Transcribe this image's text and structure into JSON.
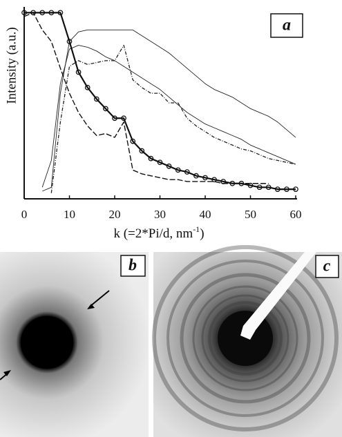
{
  "chart_data": {
    "type": "line",
    "xlabel": {
      "text": "k (=2*Pi/d, nm",
      "sup": "-1",
      "end": ")"
    },
    "ylabel": "Intensity (a.u.)",
    "annotations": [
      "a"
    ],
    "x": [
      0,
      2,
      4,
      6,
      8,
      10,
      12,
      14,
      16,
      18,
      20,
      22,
      24,
      26,
      28,
      30,
      32,
      34,
      36,
      38,
      40,
      42,
      44,
      46,
      48,
      50,
      52,
      54,
      56,
      58,
      60
    ],
    "xlim": [
      0,
      60
    ],
    "xticks": [
      0,
      10,
      20,
      30,
      40,
      50,
      60
    ],
    "ylim": [
      0,
      1
    ],
    "series": [
      {
        "color": "#222222",
        "width": 0.9,
        "values": [
          null,
          null,
          0.04,
          0.06,
          0.55,
          0.82,
          0.87,
          0.88,
          0.88,
          0.88,
          0.88,
          0.88,
          0.88,
          0.85,
          0.82,
          0.79,
          0.76,
          0.72,
          0.68,
          0.64,
          0.6,
          0.57,
          0.55,
          0.53,
          0.5,
          0.47,
          0.45,
          0.43,
          0.4,
          0.36,
          0.32
        ]
      },
      {
        "color": "#222222",
        "width": 0.9,
        "values": [
          null,
          null,
          0.06,
          0.2,
          0.6,
          0.78,
          0.8,
          0.79,
          0.77,
          0.74,
          0.72,
          0.69,
          0.66,
          0.63,
          0.6,
          0.57,
          0.53,
          0.49,
          0.45,
          0.42,
          0.39,
          0.37,
          0.35,
          0.33,
          0.31,
          0.28,
          0.26,
          0.24,
          0.22,
          0.2,
          0.18
        ]
      },
      {
        "color": "#222222",
        "width": 1.3,
        "dash": "5,2,1,2",
        "values": [
          null,
          null,
          null,
          0.03,
          0.4,
          0.69,
          0.72,
          0.7,
          0.71,
          0.72,
          0.72,
          0.8,
          0.62,
          0.58,
          0.55,
          0.55,
          0.5,
          0.5,
          0.42,
          0.38,
          0.35,
          0.32,
          0.3,
          0.28,
          0.26,
          0.25,
          0.23,
          0.21,
          0.2,
          0.19,
          0.18
        ]
      },
      {
        "color": "#111111",
        "width": 2.2,
        "marker": "circle",
        "values": [
          0.97,
          0.97,
          0.97,
          0.97,
          0.97,
          0.82,
          0.66,
          0.58,
          0.52,
          0.47,
          0.42,
          0.42,
          0.3,
          0.25,
          0.21,
          0.19,
          0.17,
          0.15,
          0.14,
          0.12,
          0.11,
          0.1,
          0.09,
          0.08,
          0.08,
          0.07,
          0.06,
          0.06,
          0.05,
          0.05,
          0.05
        ]
      },
      {
        "color": "#111111",
        "width": 1.4,
        "dash": "8,3",
        "values": [
          0.95,
          0.97,
          0.88,
          0.82,
          0.68,
          0.55,
          0.45,
          0.38,
          0.33,
          0.34,
          0.32,
          0.4,
          0.15,
          0.13,
          0.12,
          0.11,
          0.1,
          0.1,
          0.09,
          0.09,
          0.09,
          0.09,
          0.08,
          0.08,
          0.08,
          0.08,
          0.08,
          0.08,
          null,
          null,
          null
        ]
      }
    ]
  },
  "images": [
    {
      "label": "b"
    },
    {
      "label": "c"
    }
  ]
}
